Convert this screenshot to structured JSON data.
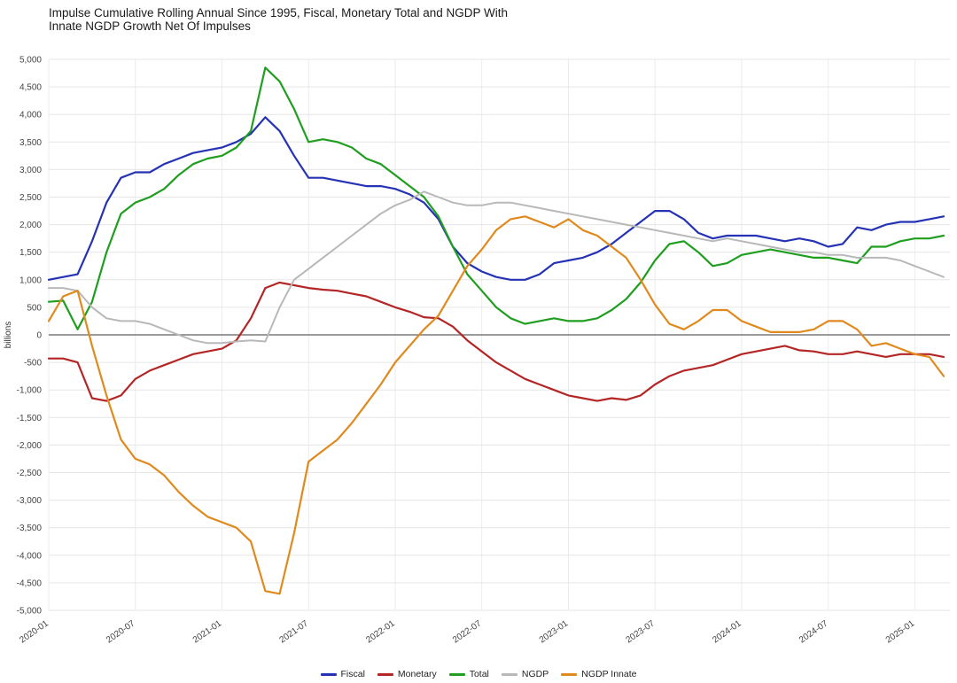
{
  "chart": {
    "title_line1": "Impulse Cumulative Rolling Annual Since 1995, Fiscal, Monetary Total and NGDP With",
    "title_line2": "Innate NGDP Growth Net Of Impulses"
  },
  "chart_data": {
    "type": "line",
    "title": "Impulse Cumulative Rolling Annual Since 1995, Fiscal, Monetary Total and NGDP With Innate NGDP Growth Net Of Impulses",
    "xlabel": "",
    "ylabel": "billions",
    "ylim": [
      -5000,
      5000
    ],
    "y_tick_step": 500,
    "grid": true,
    "legend_position": "bottom",
    "x_ticks": [
      "2020-01",
      "2020-07",
      "2021-01",
      "2021-07",
      "2022-01",
      "2022-07",
      "2023-01",
      "2023-07",
      "2024-01",
      "2024-07",
      "2025-01"
    ],
    "categories": [
      "2020-01",
      "2020-02",
      "2020-03",
      "2020-04",
      "2020-05",
      "2020-06",
      "2020-07",
      "2020-08",
      "2020-09",
      "2020-10",
      "2020-11",
      "2020-12",
      "2021-01",
      "2021-02",
      "2021-03",
      "2021-04",
      "2021-05",
      "2021-06",
      "2021-07",
      "2021-08",
      "2021-09",
      "2021-10",
      "2021-11",
      "2021-12",
      "2022-01",
      "2022-02",
      "2022-03",
      "2022-04",
      "2022-05",
      "2022-06",
      "2022-07",
      "2022-08",
      "2022-09",
      "2022-10",
      "2022-11",
      "2022-12",
      "2023-01",
      "2023-02",
      "2023-03",
      "2023-04",
      "2023-05",
      "2023-06",
      "2023-07",
      "2023-08",
      "2023-09",
      "2023-10",
      "2023-11",
      "2023-12",
      "2024-01",
      "2024-02",
      "2024-03",
      "2024-04",
      "2024-05",
      "2024-06",
      "2024-07",
      "2024-08",
      "2024-09",
      "2024-10",
      "2024-11",
      "2024-12",
      "2025-01",
      "2025-02",
      "2025-03"
    ],
    "series": [
      {
        "name": "Fiscal",
        "color": "#2532b4",
        "width": 2.2,
        "values": [
          1000,
          1050,
          1100,
          1700,
          2400,
          2850,
          2950,
          2950,
          3100,
          3200,
          3300,
          3350,
          3400,
          3500,
          3650,
          3950,
          3700,
          3250,
          2850,
          2850,
          2800,
          2750,
          2700,
          2700,
          2650,
          2550,
          2400,
          2100,
          1600,
          1300,
          1150,
          1050,
          1000,
          1000,
          1100,
          1300,
          1350,
          1400,
          1500,
          1650,
          1850,
          2050,
          2250,
          2250,
          2100,
          1850,
          1750,
          1800,
          1800,
          1800,
          1750,
          1700,
          1750,
          1700,
          1600,
          1650,
          1950,
          1900,
          2000,
          2050,
          2050,
          2100,
          2150
        ]
      },
      {
        "name": "Monetary",
        "color": "#b42525",
        "width": 2.2,
        "values": [
          -430,
          -430,
          -500,
          -1150,
          -1200,
          -1100,
          -800,
          -650,
          -550,
          -450,
          -350,
          -300,
          -250,
          -100,
          300,
          850,
          950,
          900,
          850,
          820,
          800,
          750,
          700,
          600,
          500,
          420,
          320,
          300,
          150,
          -100,
          -300,
          -500,
          -650,
          -800,
          -900,
          -1000,
          -1100,
          -1150,
          -1200,
          -1150,
          -1180,
          -1100,
          -900,
          -750,
          -650,
          -600,
          -550,
          -450,
          -350,
          -300,
          -250,
          -200,
          -280,
          -300,
          -350,
          -350,
          -300,
          -350,
          -400,
          -350,
          -350,
          -350,
          -400
        ]
      },
      {
        "name": "Total",
        "color": "#1f9e1f",
        "width": 2.2,
        "values": [
          600,
          620,
          100,
          600,
          1500,
          2200,
          2400,
          2500,
          2650,
          2900,
          3100,
          3200,
          3250,
          3400,
          3700,
          4850,
          4600,
          4100,
          3500,
          3550,
          3500,
          3400,
          3200,
          3100,
          2900,
          2700,
          2500,
          2150,
          1600,
          1100,
          800,
          500,
          300,
          200,
          250,
          300,
          250,
          250,
          300,
          450,
          650,
          950,
          1350,
          1650,
          1700,
          1500,
          1250,
          1300,
          1450,
          1500,
          1550,
          1500,
          1450,
          1400,
          1400,
          1350,
          1300,
          1600,
          1600,
          1700,
          1750,
          1750,
          1800
        ]
      },
      {
        "name": "NGDP",
        "color": "#b8b8b8",
        "width": 2,
        "values": [
          850,
          850,
          800,
          500,
          300,
          250,
          250,
          200,
          100,
          0,
          -100,
          -150,
          -150,
          -120,
          -100,
          -120,
          500,
          1000,
          1200,
          1400,
          1600,
          1800,
          2000,
          2200,
          2350,
          2450,
          2600,
          2500,
          2400,
          2350,
          2350,
          2400,
          2400,
          2350,
          2300,
          2250,
          2200,
          2150,
          2100,
          2050,
          2000,
          1950,
          1900,
          1850,
          1800,
          1750,
          1700,
          1750,
          1700,
          1650,
          1600,
          1550,
          1500,
          1500,
          1450,
          1450,
          1400,
          1400,
          1400,
          1350,
          1250,
          1150,
          1050
        ]
      },
      {
        "name": "NGDP Innate",
        "color": "#e08a1e",
        "width": 2.2,
        "values": [
          250,
          700,
          800,
          -200,
          -1100,
          -1900,
          -2250,
          -2350,
          -2550,
          -2850,
          -3100,
          -3300,
          -3400,
          -3500,
          -3750,
          -4650,
          -4700,
          -3600,
          -2300,
          -2100,
          -1900,
          -1600,
          -1250,
          -900,
          -500,
          -200,
          100,
          350,
          800,
          1250,
          1550,
          1900,
          2100,
          2150,
          2050,
          1950,
          2100,
          1900,
          1800,
          1600,
          1400,
          1000,
          550,
          200,
          100,
          250,
          450,
          450,
          250,
          150,
          50,
          50,
          50,
          100,
          250,
          250,
          100,
          -200,
          -150,
          -250,
          -350,
          -400,
          -750
        ]
      }
    ]
  }
}
